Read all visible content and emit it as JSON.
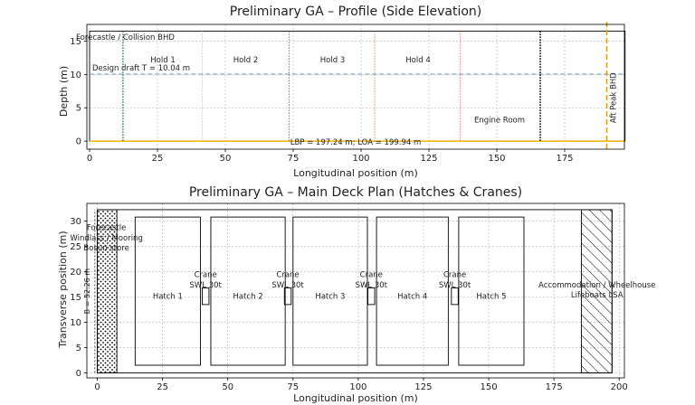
{
  "chart_data": [
    {
      "type": "line",
      "title": "Preliminary GA – Profile (Side Elevation)",
      "xlabel": "Longitudinal position (m)",
      "ylabel": "Depth (m)",
      "xlim": [
        -1,
        197
      ],
      "ylim": [
        -1.2,
        17.5
      ],
      "xticks": [
        0,
        25,
        50,
        75,
        100,
        125,
        150,
        175
      ],
      "yticks": [
        0,
        5,
        10,
        15
      ],
      "grid": true,
      "hull": {
        "x0": 0,
        "x1": 197.24,
        "bottom": 0,
        "top": 16.5,
        "edge_color": "#000000"
      },
      "baseline": {
        "x0": 0,
        "x1": 197.24,
        "y": 0,
        "color": "#f2b705"
      },
      "draft_line": {
        "y": 10.04,
        "x0": 0,
        "x1": 197.24,
        "color": "#5b9bd5",
        "label": "Design draft T = 10.04 m",
        "label_x": 1,
        "label_y": 10.6
      },
      "bulkheads": [
        {
          "x": 12.3,
          "color": "#1a7a5a",
          "style": "dotted",
          "width": 1.4
        },
        {
          "x": 41.5,
          "color": "#e7c35a",
          "style": "dotted",
          "width": 0.8
        },
        {
          "x": 73.5,
          "color": "#1a7a8a",
          "style": "dotted",
          "width": 0.8
        },
        {
          "x": 105.0,
          "color": "#d07a2a",
          "style": "dotted",
          "width": 0.8
        },
        {
          "x": 136.5,
          "color": "#e07070",
          "style": "dotted",
          "width": 0.8
        },
        {
          "x": 166.0,
          "color": "#000000",
          "style": "dotted",
          "width": 1.6
        },
        {
          "x": 190.5,
          "color": "#d4a017",
          "style": "dashed",
          "width": 1.5
        }
      ],
      "labels": [
        {
          "text": "Forecastle / Collision BHD",
          "x": -5,
          "y": 15.2
        },
        {
          "text": "Hold 1",
          "x": 27,
          "y": 11.8
        },
        {
          "text": "Hold 2",
          "x": 57.5,
          "y": 11.8
        },
        {
          "text": "Hold 3",
          "x": 89.5,
          "y": 11.8
        },
        {
          "text": "Hold 4",
          "x": 121,
          "y": 11.8
        },
        {
          "text": "Engine Room",
          "x": 151,
          "y": 2.8
        },
        {
          "text": "LBP = 197.24 m; LOA = 199.94 m",
          "x": 98,
          "y": -0.5
        }
      ],
      "vertical_label": {
        "text": "Aft Peak BHD",
        "x": 193.8,
        "y": 6.5
      }
    },
    {
      "type": "line",
      "title": "Preliminary GA – Main Deck Plan (Hatches & Cranes)",
      "xlabel": "Longitudinal position (m)",
      "ylabel": "Transverse position (m)",
      "xlim": [
        -4,
        202
      ],
      "ylim": [
        -1,
        33.5
      ],
      "xticks": [
        0,
        25,
        50,
        75,
        100,
        125,
        150,
        175,
        200
      ],
      "yticks": [
        0,
        5,
        10,
        15,
        20,
        25,
        30
      ],
      "grid": true,
      "deck_outline": {
        "x0": 0,
        "x1": 197.24,
        "y0": 0,
        "y1": 32.26
      },
      "beam_line": {
        "text": "B = 32.26 m",
        "x": -3,
        "y0": 0,
        "y1": 32.26
      },
      "hatches": [
        {
          "name": "Hatch 1",
          "x0": 14.5,
          "x1": 39.5,
          "y0": 1.5,
          "y1": 30.8
        },
        {
          "name": "Hatch 2",
          "x0": 43.5,
          "x1": 72,
          "y0": 1.5,
          "y1": 30.8
        },
        {
          "name": "Hatch 3",
          "x0": 75,
          "x1": 103.5,
          "y0": 1.5,
          "y1": 30.8
        },
        {
          "name": "Hatch 4",
          "x0": 107,
          "x1": 134.5,
          "y0": 1.5,
          "y1": 30.8
        },
        {
          "name": "Hatch 5",
          "x0": 138.5,
          "x1": 163.5,
          "y0": 1.5,
          "y1": 30.8
        }
      ],
      "cranes": [
        {
          "label": "Crane\nSWL 30t",
          "x0": 40.2,
          "x1": 42.8,
          "y0": 13.5,
          "y1": 16.8
        },
        {
          "label": "Crane\nSWL 30t",
          "x0": 71.7,
          "x1": 74.3,
          "y0": 13.5,
          "y1": 16.8
        },
        {
          "label": "Crane\nSWL 30t",
          "x0": 103.7,
          "x1": 106.3,
          "y0": 13.5,
          "y1": 16.8
        },
        {
          "label": "Crane\nSWL 30t",
          "x0": 135.7,
          "x1": 138.3,
          "y0": 13.5,
          "y1": 16.8
        }
      ],
      "zones": [
        {
          "name": "Forecastle / Windlass / Mooring / Bosun store",
          "x0": 0,
          "x1": 7.5,
          "y0": 0,
          "y1": 32.26,
          "hatch": "dots"
        },
        {
          "name": "Accommodation / Wheelhouse / Lifeboats LSA",
          "x0": 185.5,
          "x1": 197.24,
          "y0": 0,
          "y1": 32.26,
          "hatch": "diagonal"
        }
      ],
      "labels": [
        {
          "text": "Forecastle",
          "x": 3.5,
          "y": 28.2
        },
        {
          "text": "Windlass / Mooring",
          "x": 3.5,
          "y": 26.2
        },
        {
          "text": "Bosun store",
          "x": 3.5,
          "y": 24.2
        },
        {
          "text": "Crane",
          "x": 41.5,
          "y": 18.9
        },
        {
          "text": "SWL 30t",
          "x": 41.5,
          "y": 16.9
        },
        {
          "text": "Crane",
          "x": 73,
          "y": 18.9
        },
        {
          "text": "SWL 30t",
          "x": 73,
          "y": 16.9
        },
        {
          "text": "Crane",
          "x": 105,
          "y": 18.9
        },
        {
          "text": "SWL 30t",
          "x": 105,
          "y": 16.9
        },
        {
          "text": "Crane",
          "x": 137,
          "y": 18.9
        },
        {
          "text": "SWL 30t",
          "x": 137,
          "y": 16.9
        },
        {
          "text": "Accommodation / Wheelhouse",
          "x": 191.5,
          "y": 16.9
        },
        {
          "text": "Lifeboats LSA",
          "x": 191.5,
          "y": 14.9
        }
      ]
    }
  ]
}
